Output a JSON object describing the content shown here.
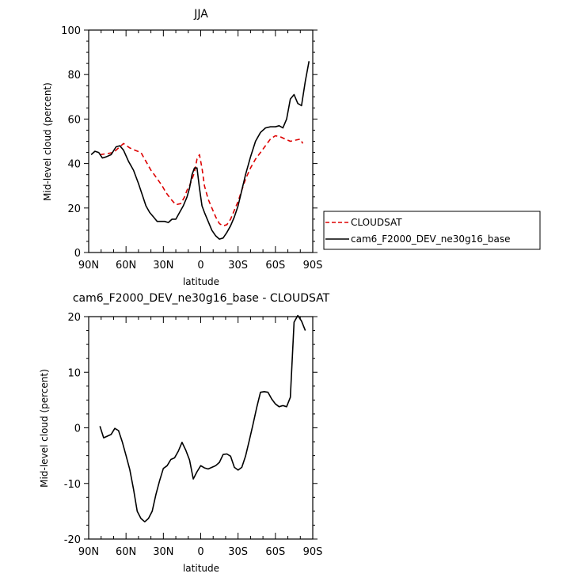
{
  "chart_data": [
    {
      "type": "line",
      "title": "JJA",
      "xlabel": "latitude",
      "ylabel": "Mid-level cloud (percent)",
      "xlim": [
        90,
        -90
      ],
      "ylim": [
        0,
        100
      ],
      "xticks": [
        90,
        60,
        30,
        0,
        -30,
        -60,
        -90
      ],
      "xtick_labels": [
        "90N",
        "60N",
        "30N",
        "0",
        "30S",
        "60S",
        "90S"
      ],
      "yticks": [
        0,
        20,
        40,
        60,
        80,
        100
      ],
      "ytick_labels": [
        "0",
        "20",
        "40",
        "60",
        "80",
        "100"
      ],
      "legend_position": "outside-right",
      "series": [
        {
          "name": "CLOUDSAT",
          "color": "#dd0000",
          "dash": true,
          "x": [
            81,
            75,
            70,
            66,
            62,
            57,
            53,
            48,
            44,
            40,
            36,
            31,
            28,
            24,
            20,
            16,
            13,
            11,
            9,
            7,
            5,
            3,
            1,
            -1,
            -3,
            -6,
            -9,
            -12,
            -15,
            -18,
            -21,
            -24,
            -27,
            -30,
            -33,
            -36,
            -40,
            -44,
            -48,
            -52,
            -56,
            -60,
            -64,
            -68,
            -72,
            -76,
            -80,
            -82
          ],
          "y": [
            44,
            44.5,
            45,
            47,
            49,
            47,
            46,
            45,
            41,
            37,
            34,
            30,
            27,
            24,
            21.5,
            22,
            25,
            28,
            30,
            33,
            36,
            42,
            44,
            38,
            30,
            24,
            20,
            16,
            13,
            12,
            12.5,
            15,
            19,
            23,
            28,
            33,
            38,
            42,
            45,
            48,
            51,
            52.5,
            52,
            51,
            50,
            50.5,
            51,
            49
          ]
        },
        {
          "name": "cam6_F2000_DEV_ne30g16_base",
          "color": "#000000",
          "dash": false,
          "x": [
            88,
            85,
            82,
            79,
            76,
            72,
            68,
            65,
            62,
            58,
            54,
            50,
            47,
            44,
            41,
            38,
            35,
            32,
            29,
            26,
            23,
            20,
            17,
            14,
            11,
            9,
            7,
            5,
            3,
            1,
            -1,
            -3,
            -6,
            -9,
            -12,
            -15,
            -18,
            -21,
            -24,
            -27,
            -30,
            -33,
            -36,
            -40,
            -44,
            -48,
            -52,
            -56,
            -60,
            -63,
            -66,
            -69,
            -72,
            -75,
            -78,
            -81,
            -84,
            -87
          ],
          "y": [
            44,
            45.5,
            45,
            42.5,
            43,
            44,
            47.5,
            48,
            46,
            41,
            37,
            31,
            26,
            21,
            18,
            16,
            14,
            14,
            14,
            13.5,
            15,
            15,
            18,
            21,
            25,
            29,
            35,
            38,
            38,
            29,
            21,
            18,
            14,
            10,
            7.5,
            6,
            6.5,
            9,
            12,
            16,
            21,
            28,
            35,
            43,
            50,
            54,
            56,
            56.5,
            56.5,
            57,
            56,
            60,
            69,
            71,
            67,
            66,
            77,
            86
          ]
        }
      ]
    },
    {
      "type": "line",
      "title": "cam6_F2000_DEV_ne30g16_base - CLOUDSAT",
      "xlabel": "latitude",
      "ylabel": "Mid-level cloud (percent)",
      "xlim": [
        90,
        -90
      ],
      "ylim": [
        -20,
        20
      ],
      "xticks": [
        90,
        60,
        30,
        0,
        -30,
        -60,
        -90
      ],
      "xtick_labels": [
        "90N",
        "60N",
        "30N",
        "0",
        "30S",
        "60S",
        "90S"
      ],
      "yticks": [
        -20,
        -10,
        0,
        10,
        20
      ],
      "ytick_labels": [
        "-20",
        "-10",
        "0",
        "10",
        "20"
      ],
      "series": [
        {
          "color": "#000000",
          "dash": false,
          "x": [
            81,
            78,
            75,
            72,
            69,
            66,
            63,
            60,
            57,
            54,
            51,
            48,
            45,
            42,
            39,
            36,
            33,
            30,
            27,
            24,
            21,
            18,
            15,
            12,
            9,
            6,
            3,
            0,
            -3,
            -6,
            -9,
            -12,
            -15,
            -18,
            -21,
            -24,
            -27,
            -30,
            -33,
            -36,
            -39,
            -42,
            -45,
            -48,
            -51,
            -54,
            -57,
            -60,
            -63,
            -66,
            -69,
            -72,
            -75,
            -78,
            -81,
            -84
          ],
          "y": [
            0.3,
            -1.8,
            -1.5,
            -1.2,
            -0.1,
            -0.5,
            -2.5,
            -5,
            -7.5,
            -11,
            -15,
            -16.3,
            -16.9,
            -16.3,
            -15,
            -12,
            -9.5,
            -7.3,
            -6.8,
            -5.7,
            -5.4,
            -4.2,
            -2.6,
            -4,
            -5.8,
            -9.2,
            -7.9,
            -6.8,
            -7.2,
            -7.4,
            -7.1,
            -6.8,
            -6.2,
            -4.8,
            -4.7,
            -5.1,
            -7.1,
            -7.6,
            -7.1,
            -5.1,
            -2.3,
            0.6,
            3.7,
            6.4,
            6.5,
            6.4,
            5.2,
            4.3,
            3.8,
            4.0,
            3.8,
            5.5,
            19.0,
            20.2,
            19.2,
            17.5
          ]
        }
      ]
    }
  ]
}
